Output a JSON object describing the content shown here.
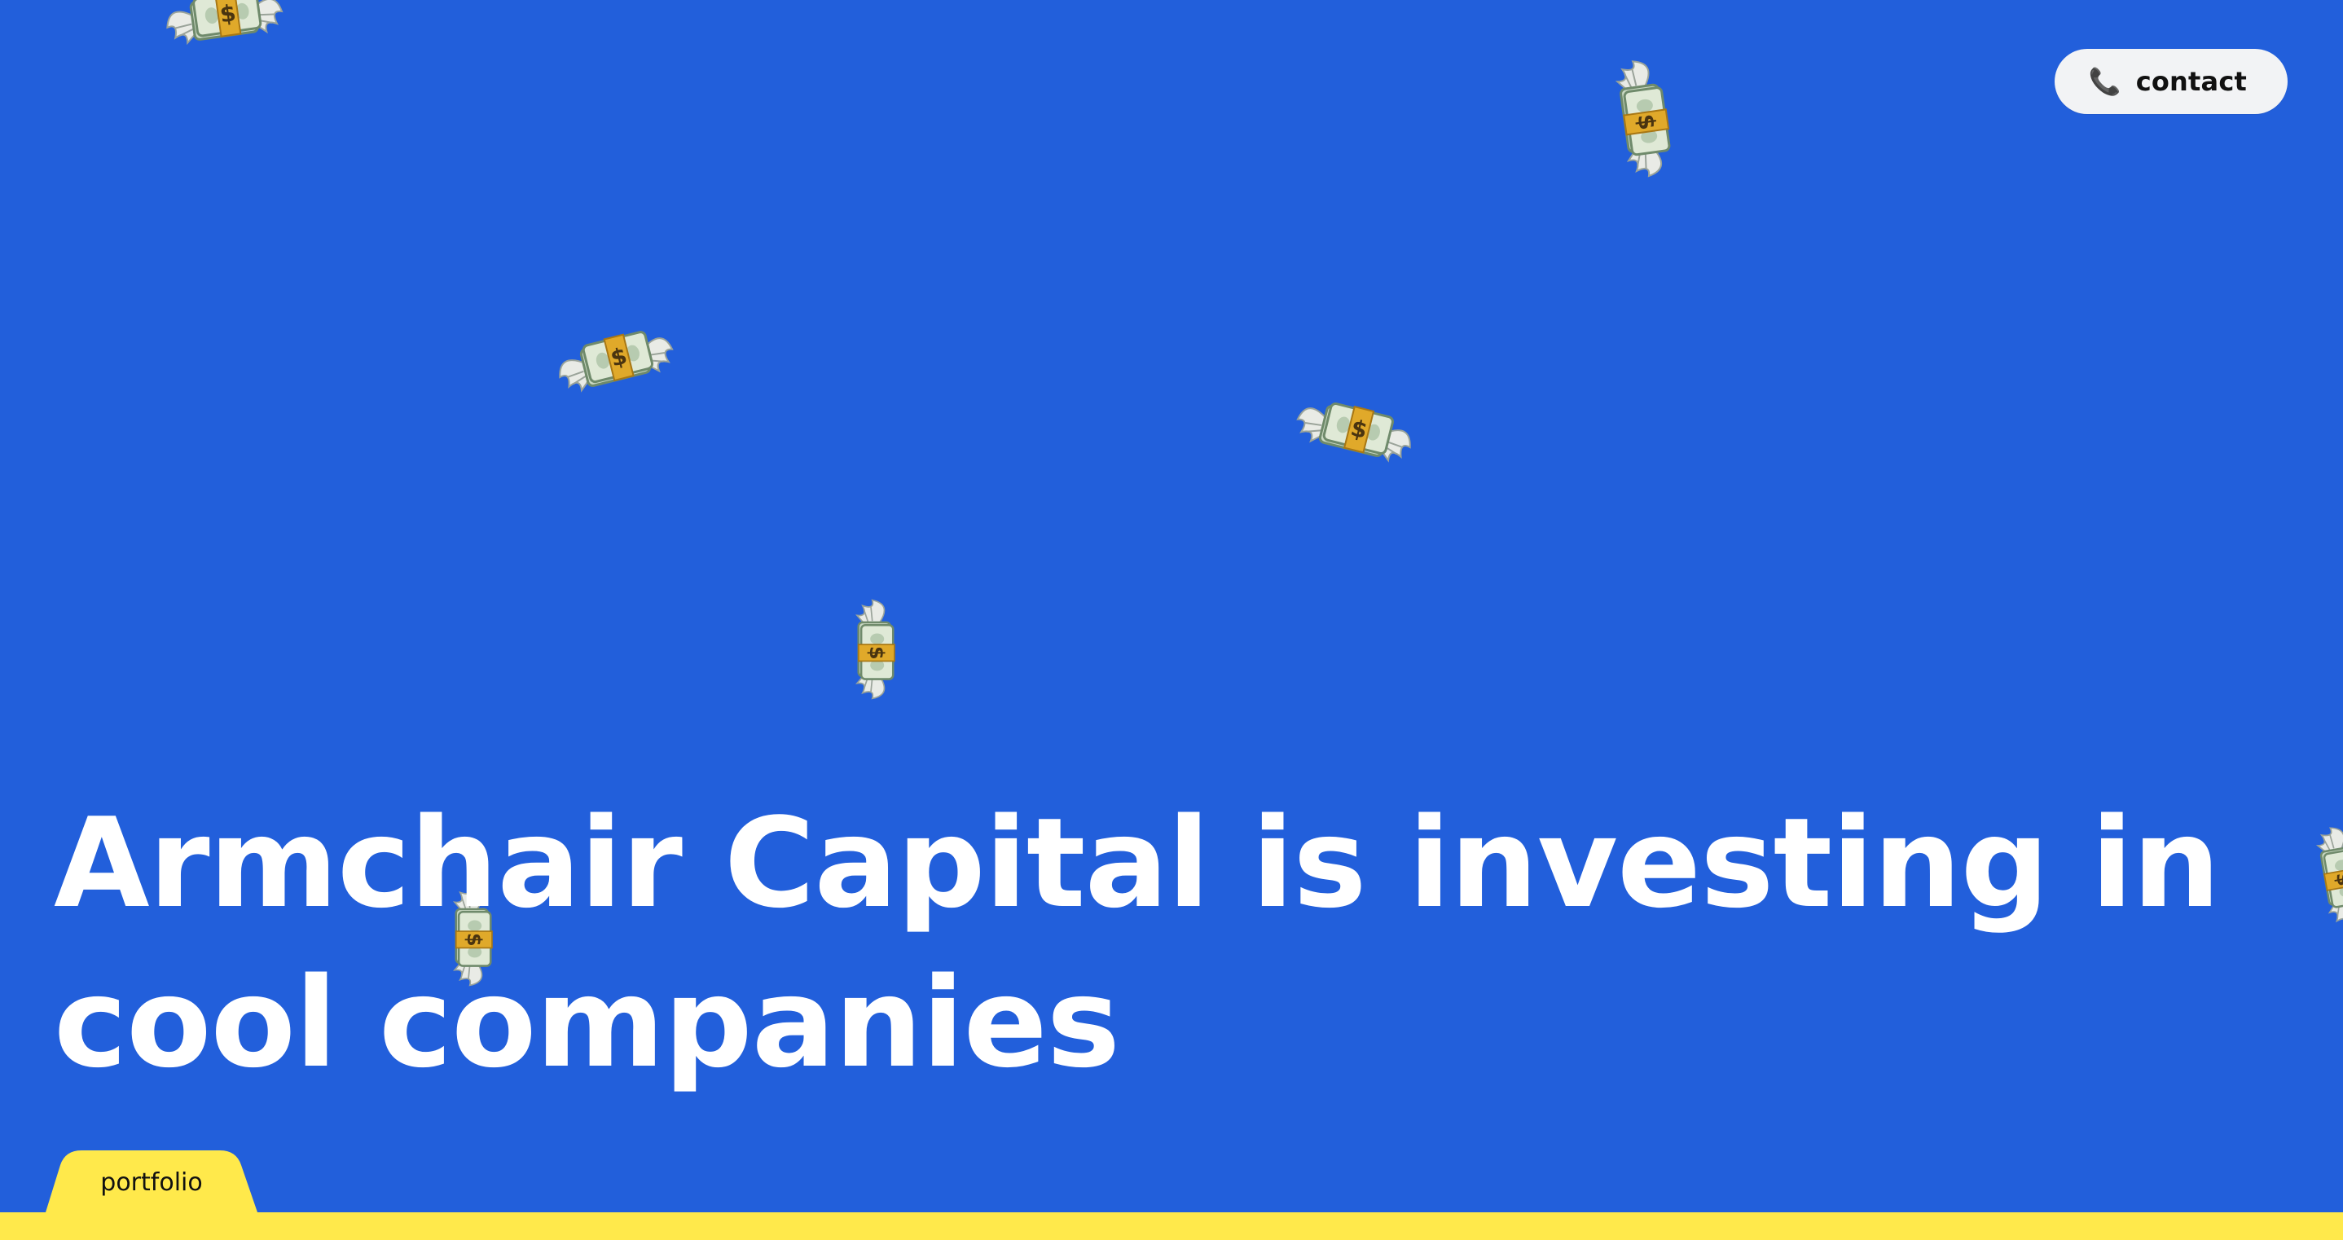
{
  "header": {
    "contact_icon": "phone-icon",
    "contact_glyph": "📞",
    "contact_label": "contact"
  },
  "hero": {
    "headline": "Armchair Capital is investing in cool companies"
  },
  "footer": {
    "portfolio_tab_label": "portfolio"
  },
  "decorations": {
    "icon": "money-with-wings-icon",
    "count": 8
  },
  "colors": {
    "background": "#225fdb",
    "accent": "#ffe94b",
    "headline": "#ffffff",
    "button_bg": "#f2f3f5"
  }
}
